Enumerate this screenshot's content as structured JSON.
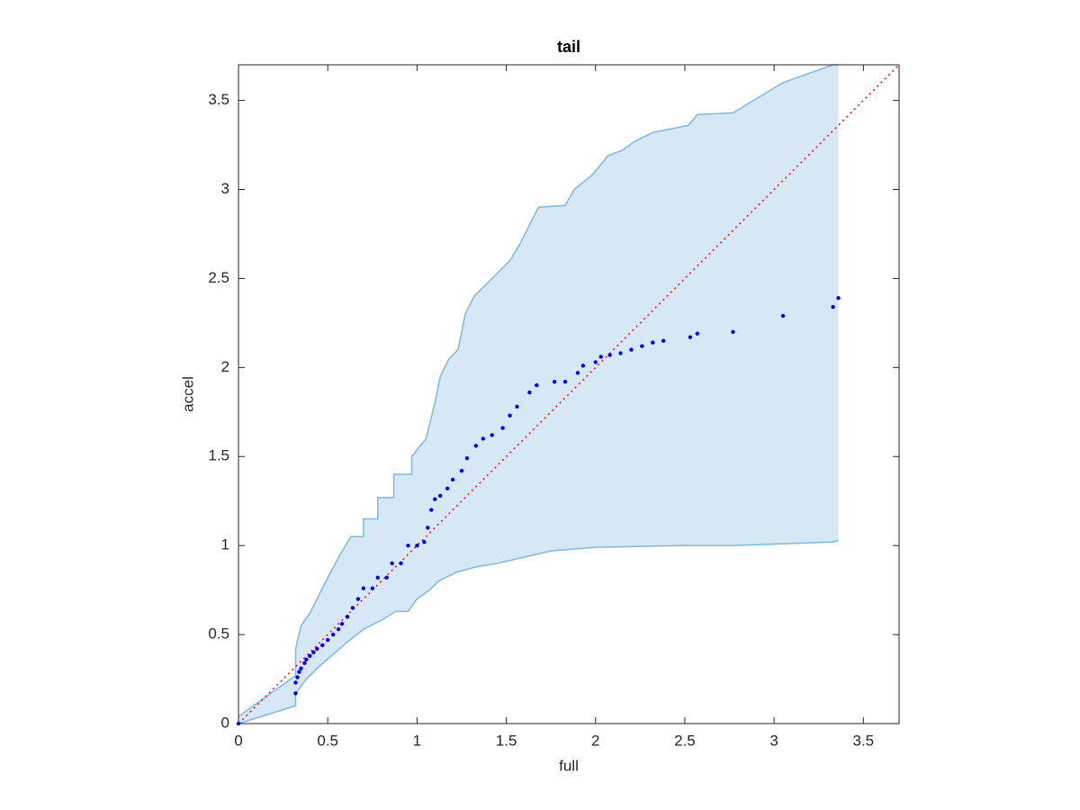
{
  "chart_data": {
    "type": "scatter",
    "title": "tail",
    "xlabel": "full",
    "ylabel": "accel",
    "xlim": [
      0,
      3.7
    ],
    "ylim": [
      0,
      3.7
    ],
    "xticks": [
      0,
      0.5,
      1,
      1.5,
      2,
      2.5,
      3,
      3.5
    ],
    "yticks": [
      0,
      0.5,
      1,
      1.5,
      2,
      2.5,
      3,
      3.5
    ],
    "grid": false,
    "points": {
      "color": "#0000ff",
      "x": [
        0,
        0.32,
        0.32,
        0.33,
        0.34,
        0.35,
        0.37,
        0.38,
        0.4,
        0.42,
        0.44,
        0.47,
        0.5,
        0.53,
        0.56,
        0.58,
        0.61,
        0.64,
        0.67,
        0.7,
        0.75,
        0.78,
        0.83,
        0.86,
        0.91,
        0.95,
        1.0,
        1.04,
        1.06,
        1.08,
        1.1,
        1.13,
        1.17,
        1.2,
        1.25,
        1.28,
        1.33,
        1.37,
        1.42,
        1.48,
        1.52,
        1.56,
        1.63,
        1.67,
        1.77,
        1.83,
        1.9,
        1.93,
        2.0,
        2.03,
        2.08,
        2.14,
        2.2,
        2.26,
        2.32,
        2.38,
        2.53,
        2.57,
        2.77,
        3.05,
        3.33,
        3.36
      ],
      "y": [
        0,
        0.17,
        0.23,
        0.26,
        0.29,
        0.31,
        0.34,
        0.36,
        0.38,
        0.4,
        0.42,
        0.44,
        0.47,
        0.5,
        0.53,
        0.56,
        0.6,
        0.65,
        0.7,
        0.76,
        0.76,
        0.82,
        0.82,
        0.9,
        0.9,
        1.0,
        1.0,
        1.02,
        1.1,
        1.2,
        1.26,
        1.28,
        1.32,
        1.37,
        1.42,
        1.49,
        1.56,
        1.6,
        1.62,
        1.66,
        1.73,
        1.78,
        1.86,
        1.9,
        1.92,
        1.92,
        1.97,
        2.01,
        2.03,
        2.06,
        2.07,
        2.08,
        2.1,
        2.12,
        2.14,
        2.15,
        2.17,
        2.19,
        2.2,
        2.29,
        2.34,
        2.39
      ]
    },
    "reference": {
      "color": "#ff0000",
      "x": [
        0,
        3.7
      ],
      "y": [
        0,
        3.7
      ]
    },
    "band": {
      "line_color": "#7fb8dc",
      "fill_color": "#d6e8f5",
      "upper": {
        "x": [
          0,
          0.32,
          0.32,
          0.35,
          0.4,
          0.45,
          0.5,
          0.57,
          0.63,
          0.7,
          0.7,
          0.78,
          0.78,
          0.87,
          0.87,
          0.97,
          0.97,
          1.05,
          1.1,
          1.13,
          1.18,
          1.23,
          1.25,
          1.27,
          1.32,
          1.37,
          1.45,
          1.52,
          1.58,
          1.63,
          1.68,
          1.83,
          1.88,
          1.98,
          2.03,
          2.07,
          2.15,
          2.22,
          2.32,
          2.42,
          2.52,
          2.57,
          2.77,
          3.05,
          3.33,
          3.36
        ],
        "y": [
          0.04,
          0.27,
          0.42,
          0.55,
          0.62,
          0.72,
          0.82,
          0.95,
          1.05,
          1.05,
          1.15,
          1.15,
          1.27,
          1.27,
          1.4,
          1.4,
          1.5,
          1.6,
          1.8,
          1.95,
          2.05,
          2.1,
          2.2,
          2.3,
          2.4,
          2.45,
          2.53,
          2.6,
          2.7,
          2.8,
          2.9,
          2.91,
          3.0,
          3.08,
          3.14,
          3.19,
          3.22,
          3.27,
          3.32,
          3.34,
          3.36,
          3.42,
          3.43,
          3.6,
          3.7,
          3.7
        ]
      },
      "lower": {
        "x": [
          0,
          0.32,
          0.32,
          0.38,
          0.45,
          0.52,
          0.6,
          0.7,
          0.8,
          0.88,
          0.95,
          1.0,
          1.07,
          1.12,
          1.22,
          1.33,
          1.45,
          1.58,
          1.75,
          2.0,
          2.5,
          2.77,
          3.33,
          3.36
        ],
        "y": [
          0,
          0.1,
          0.17,
          0.25,
          0.32,
          0.38,
          0.45,
          0.53,
          0.58,
          0.63,
          0.63,
          0.7,
          0.75,
          0.8,
          0.85,
          0.88,
          0.9,
          0.93,
          0.97,
          0.99,
          1.0,
          1.0,
          1.02,
          1.03
        ]
      }
    }
  }
}
